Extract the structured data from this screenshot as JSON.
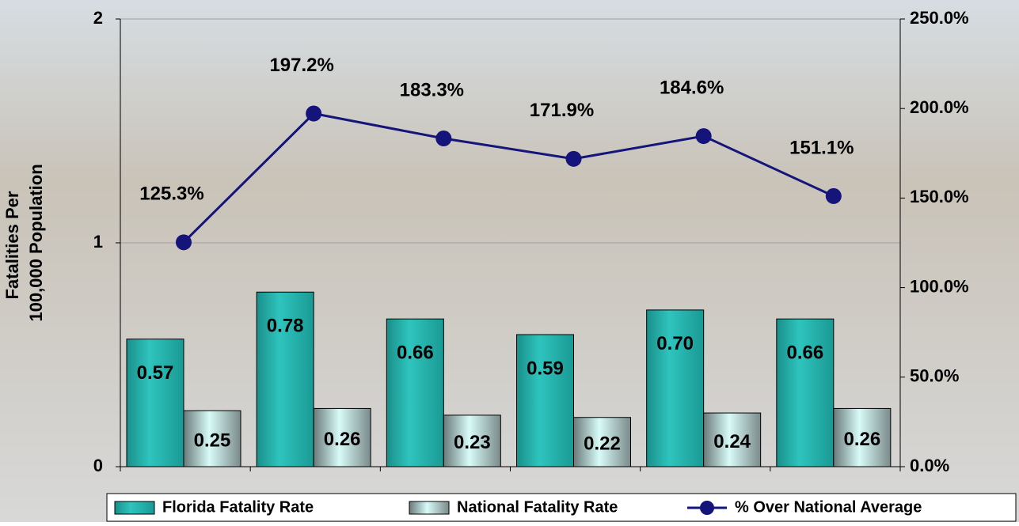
{
  "chart_data": {
    "type": "bar_line",
    "ylabel": [
      "Fatalities Per",
      "100,000 Population"
    ],
    "categories": [
      null,
      null,
      null,
      null,
      null,
      null
    ],
    "series": [
      {
        "name": "Florida Fatality Rate",
        "color": "#22b2ac",
        "values": [
          0.57,
          0.78,
          0.66,
          0.59,
          0.7,
          0.66
        ],
        "value_labels": [
          "0.57",
          "0.78",
          "0.66",
          "0.59",
          "0.70",
          "0.66"
        ]
      },
      {
        "name": "National Fatality Rate",
        "color": "#bff5f2",
        "values": [
          0.25,
          0.26,
          0.23,
          0.22,
          0.24,
          0.26
        ]
      },
      {
        "name": "% Over National Average",
        "color": "#14147a",
        "axis": "y2",
        "type": "line",
        "values": [
          125.3,
          197.2,
          183.3,
          171.9,
          184.6,
          151.1
        ],
        "value_labels": [
          "125.3%",
          "197.2%",
          "183.3%",
          "171.9%",
          "184.6%",
          "151.1%"
        ]
      }
    ],
    "ylim": [
      0,
      2
    ],
    "yticks": [
      0,
      1,
      2
    ],
    "y2lim": [
      0,
      250
    ],
    "y2ticks": [
      {
        "value": 0,
        "label": "0.0%"
      },
      {
        "value": 50,
        "label": "50.0%"
      },
      {
        "value": 100,
        "label": "100.0%"
      },
      {
        "value": 150,
        "label": "150.0%"
      },
      {
        "value": 200,
        "label": "200.0%"
      },
      {
        "value": 250,
        "label": "250.0%"
      }
    ],
    "grid": true,
    "legend": "bottom"
  }
}
